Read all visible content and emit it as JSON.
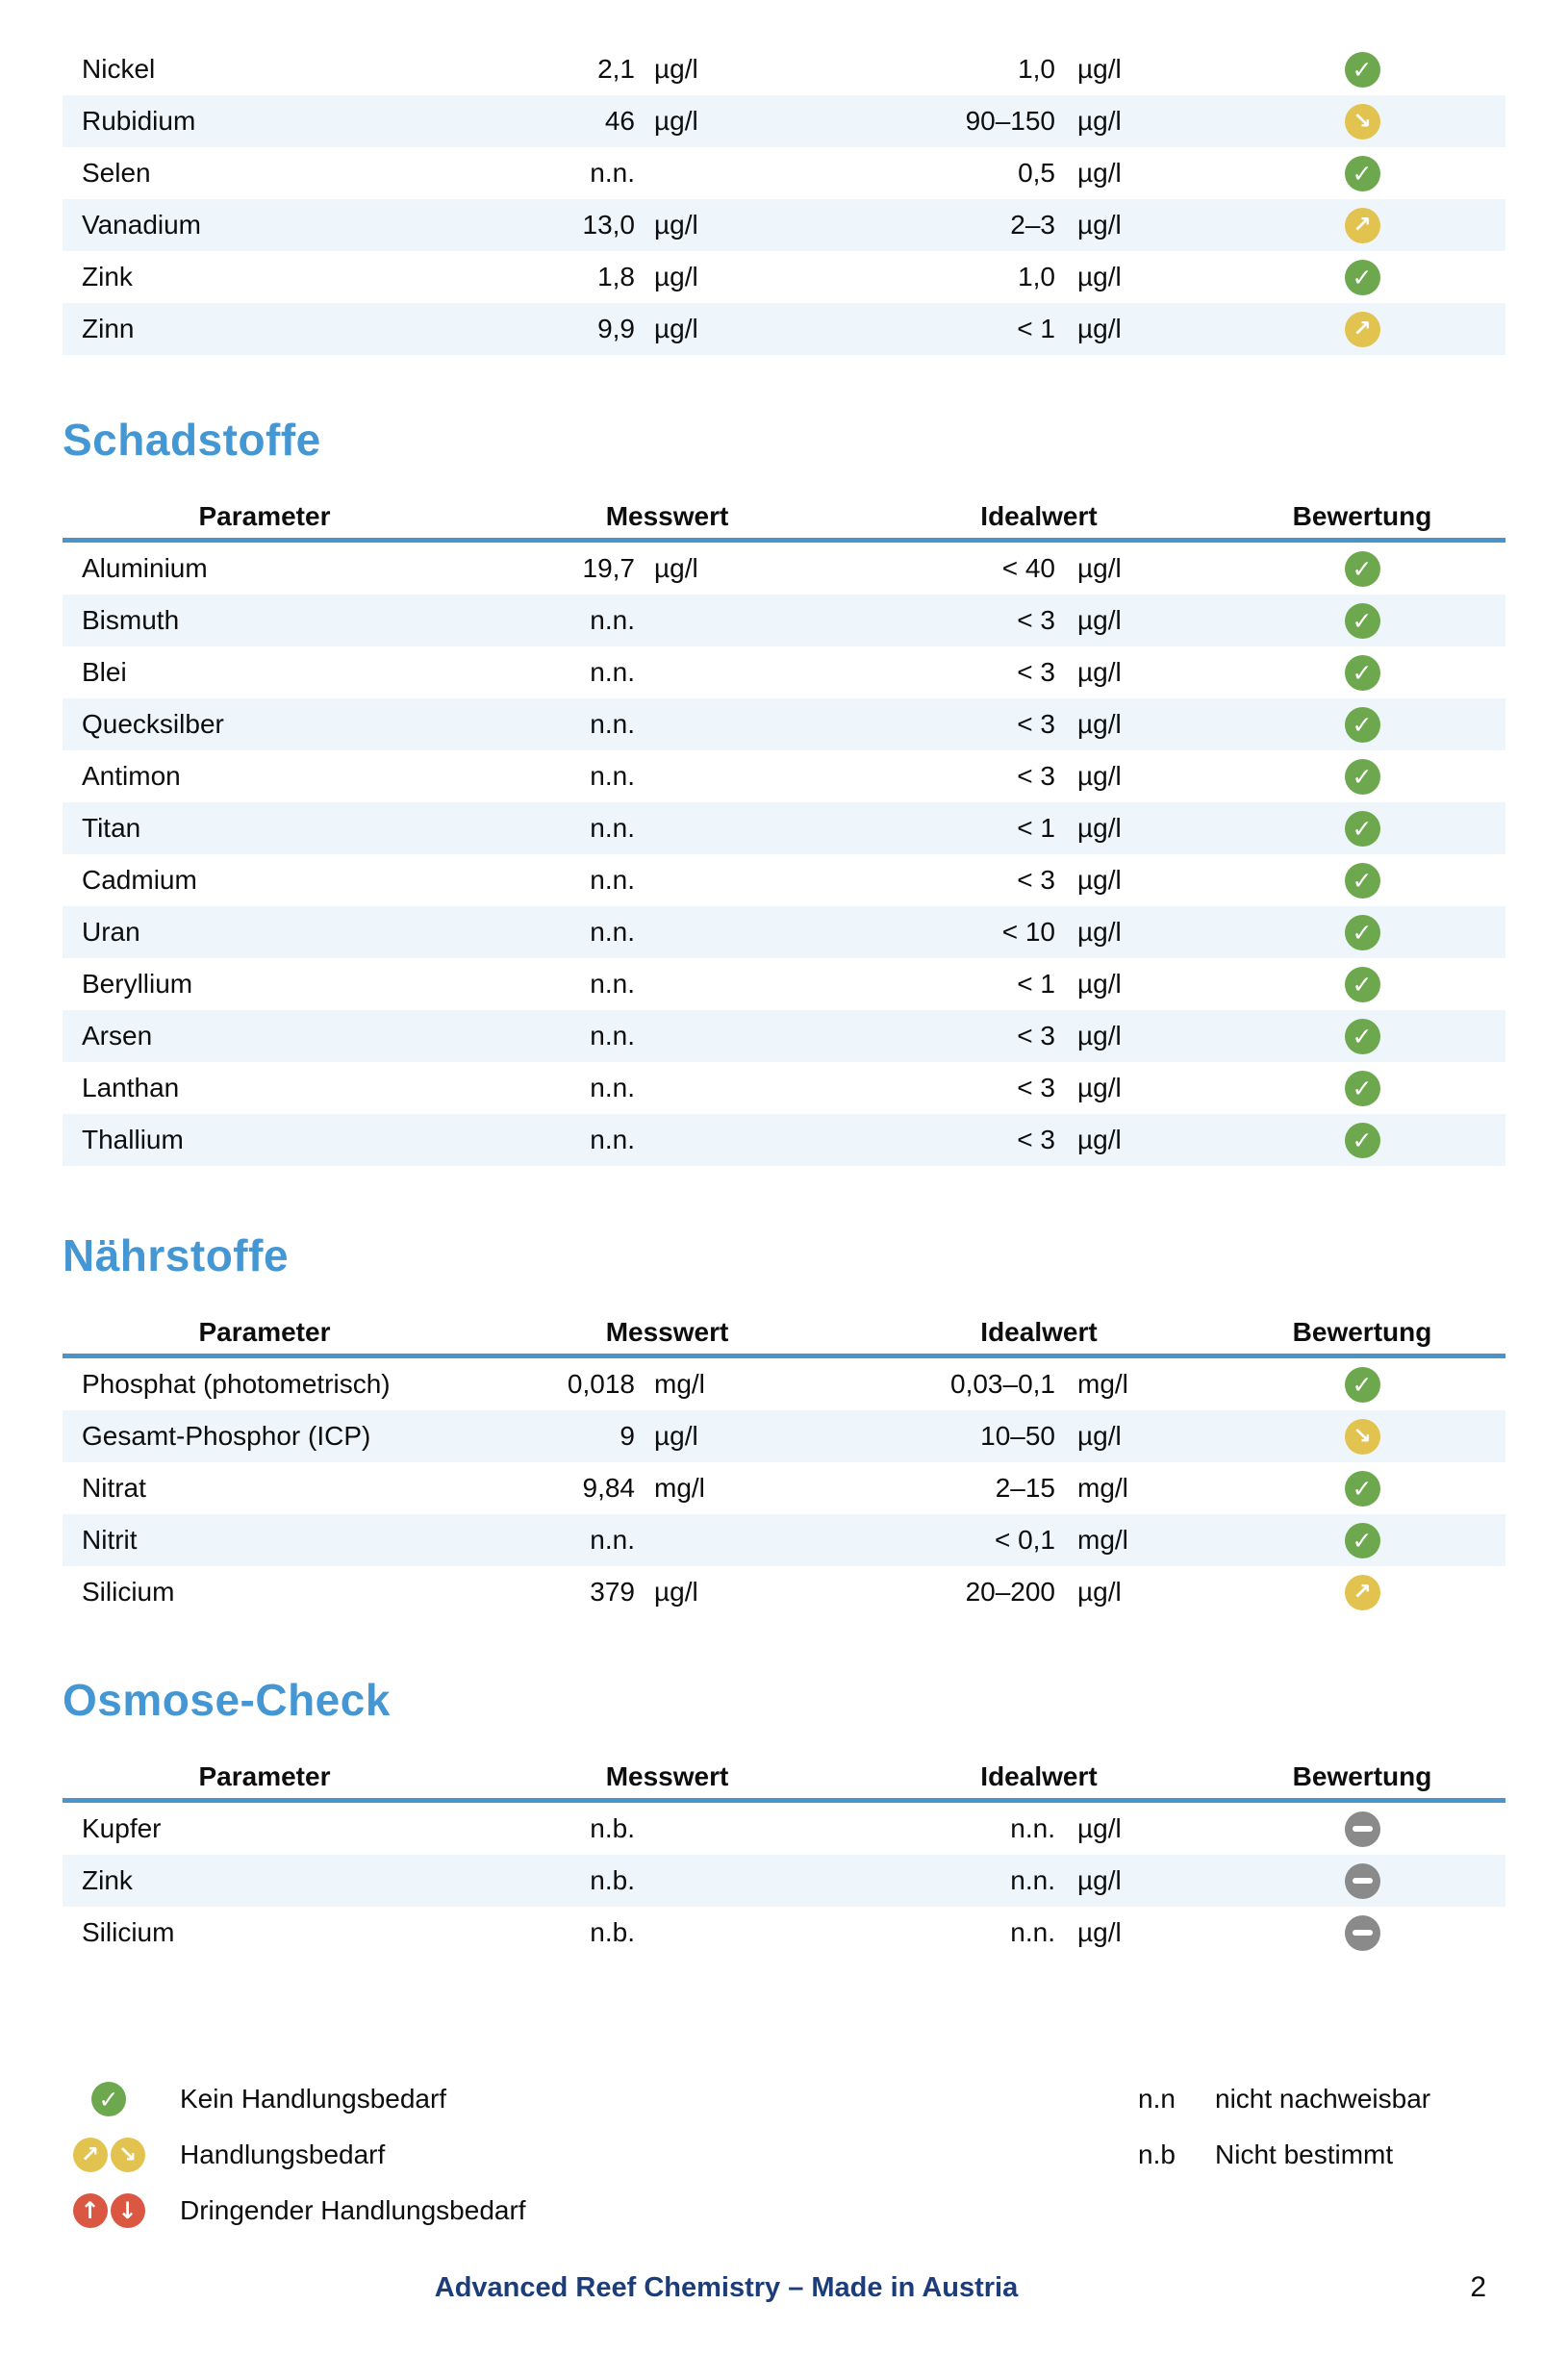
{
  "report": {
    "columns": {
      "parameter": "Parameter",
      "messwert": "Messwert",
      "idealwert": "Idealwert",
      "bewertung": "Bewertung"
    },
    "tables": [
      {
        "id": "spurenelemente-fortsetzung",
        "heading": "",
        "show_header": false,
        "rows": [
          {
            "parameter": "Nickel",
            "messwert": "2,1",
            "messwert_unit": "µg/l",
            "idealwert": "1,0",
            "idealwert_unit": "µg/l",
            "bewertung": "check"
          },
          {
            "parameter": "Rubidium",
            "messwert": "46",
            "messwert_unit": "µg/l",
            "idealwert": "90–150",
            "idealwert_unit": "µg/l",
            "bewertung": "arrow-down"
          },
          {
            "parameter": "Selen",
            "messwert": "n.n.",
            "messwert_unit": "",
            "idealwert": "0,5",
            "idealwert_unit": "µg/l",
            "bewertung": "check"
          },
          {
            "parameter": "Vanadium",
            "messwert": "13,0",
            "messwert_unit": "µg/l",
            "idealwert": "2–3",
            "idealwert_unit": "µg/l",
            "bewertung": "arrow-up"
          },
          {
            "parameter": "Zink",
            "messwert": "1,8",
            "messwert_unit": "µg/l",
            "idealwert": "1,0",
            "idealwert_unit": "µg/l",
            "bewertung": "check"
          },
          {
            "parameter": "Zinn",
            "messwert": "9,9",
            "messwert_unit": "µg/l",
            "idealwert": "< 1",
            "idealwert_unit": "µg/l",
            "bewertung": "arrow-up"
          }
        ]
      },
      {
        "id": "schadstoffe",
        "heading": "Schadstoffe",
        "show_header": true,
        "rows": [
          {
            "parameter": "Aluminium",
            "messwert": "19,7",
            "messwert_unit": "µg/l",
            "idealwert": "< 40",
            "idealwert_unit": "µg/l",
            "bewertung": "check"
          },
          {
            "parameter": "Bismuth",
            "messwert": "n.n.",
            "messwert_unit": "",
            "idealwert": "< 3",
            "idealwert_unit": "µg/l",
            "bewertung": "check"
          },
          {
            "parameter": "Blei",
            "messwert": "n.n.",
            "messwert_unit": "",
            "idealwert": "< 3",
            "idealwert_unit": "µg/l",
            "bewertung": "check"
          },
          {
            "parameter": "Quecksilber",
            "messwert": "n.n.",
            "messwert_unit": "",
            "idealwert": "< 3",
            "idealwert_unit": "µg/l",
            "bewertung": "check"
          },
          {
            "parameter": "Antimon",
            "messwert": "n.n.",
            "messwert_unit": "",
            "idealwert": "< 3",
            "idealwert_unit": "µg/l",
            "bewertung": "check"
          },
          {
            "parameter": "Titan",
            "messwert": "n.n.",
            "messwert_unit": "",
            "idealwert": "< 1",
            "idealwert_unit": "µg/l",
            "bewertung": "check"
          },
          {
            "parameter": "Cadmium",
            "messwert": "n.n.",
            "messwert_unit": "",
            "idealwert": "< 3",
            "idealwert_unit": "µg/l",
            "bewertung": "check"
          },
          {
            "parameter": "Uran",
            "messwert": "n.n.",
            "messwert_unit": "",
            "idealwert": "< 10",
            "idealwert_unit": "µg/l",
            "bewertung": "check"
          },
          {
            "parameter": "Beryllium",
            "messwert": "n.n.",
            "messwert_unit": "",
            "idealwert": "< 1",
            "idealwert_unit": "µg/l",
            "bewertung": "check"
          },
          {
            "parameter": "Arsen",
            "messwert": "n.n.",
            "messwert_unit": "",
            "idealwert": "< 3",
            "idealwert_unit": "µg/l",
            "bewertung": "check"
          },
          {
            "parameter": "Lanthan",
            "messwert": "n.n.",
            "messwert_unit": "",
            "idealwert": "< 3",
            "idealwert_unit": "µg/l",
            "bewertung": "check"
          },
          {
            "parameter": "Thallium",
            "messwert": "n.n.",
            "messwert_unit": "",
            "idealwert": "< 3",
            "idealwert_unit": "µg/l",
            "bewertung": "check"
          }
        ]
      },
      {
        "id": "naehrstoffe",
        "heading": "Nährstoffe",
        "show_header": true,
        "rows": [
          {
            "parameter": "Phosphat (photometrisch)",
            "messwert": "0,018",
            "messwert_unit": "mg/l",
            "idealwert": "0,03–0,1",
            "idealwert_unit": "mg/l",
            "bewertung": "check"
          },
          {
            "parameter": "Gesamt-Phosphor (ICP)",
            "messwert": "9",
            "messwert_unit": "µg/l",
            "idealwert": "10–50",
            "idealwert_unit": "µg/l",
            "bewertung": "arrow-down"
          },
          {
            "parameter": "Nitrat",
            "messwert": "9,84",
            "messwert_unit": "mg/l",
            "idealwert": "2–15",
            "idealwert_unit": "mg/l",
            "bewertung": "check"
          },
          {
            "parameter": "Nitrit",
            "messwert": "n.n.",
            "messwert_unit": "",
            "idealwert": "< 0,1",
            "idealwert_unit": "mg/l",
            "bewertung": "check"
          },
          {
            "parameter": "Silicium",
            "messwert": "379",
            "messwert_unit": "µg/l",
            "idealwert": "20–200",
            "idealwert_unit": "µg/l",
            "bewertung": "arrow-up"
          }
        ]
      },
      {
        "id": "osmose-check",
        "heading": "Osmose-Check",
        "show_header": true,
        "rows": [
          {
            "parameter": "Kupfer",
            "messwert": "n.b.",
            "messwert_unit": "",
            "idealwert": "n.n.",
            "idealwert_unit": "µg/l",
            "bewertung": "neutral"
          },
          {
            "parameter": "Zink",
            "messwert": "n.b.",
            "messwert_unit": "",
            "idealwert": "n.n.",
            "idealwert_unit": "µg/l",
            "bewertung": "neutral"
          },
          {
            "parameter": "Silicium",
            "messwert": "n.b.",
            "messwert_unit": "",
            "idealwert": "n.n.",
            "idealwert_unit": "µg/l",
            "bewertung": "neutral"
          }
        ]
      }
    ],
    "legend": {
      "items": [
        {
          "icons": [
            "check"
          ],
          "label": "Kein Handlungsbedarf"
        },
        {
          "icons": [
            "arrow-up",
            "arrow-down"
          ],
          "label": "Handlungsbedarf"
        },
        {
          "icons": [
            "arrow-up-red",
            "arrow-down-red"
          ],
          "label": "Dringender Handlungsbedarf"
        }
      ],
      "abbreviations": [
        {
          "abbr": "n.n",
          "label": "nicht nachweisbar"
        },
        {
          "abbr": "n.b",
          "label": "Nicht bestimmt"
        }
      ]
    },
    "footer": {
      "text": "Advanced Reef Chemistry – Made in Austria",
      "page_number": "2"
    }
  },
  "colors": {
    "accent_blue": "#4497d3",
    "table_line_blue": "#4a94c8",
    "stripe": "#eef6fb",
    "status_green": "#6da84e",
    "status_yellow": "#e2c34f",
    "status_red": "#da5742",
    "status_gray": "#8a8a8a",
    "footer_navy": "#1d3d7a"
  }
}
